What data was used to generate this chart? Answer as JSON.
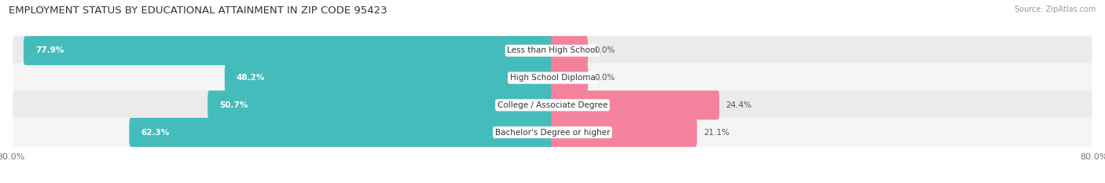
{
  "title": "EMPLOYMENT STATUS BY EDUCATIONAL ATTAINMENT IN ZIP CODE 95423",
  "source": "Source: ZipAtlas.com",
  "categories": [
    "Less than High School",
    "High School Diploma",
    "College / Associate Degree",
    "Bachelor's Degree or higher"
  ],
  "labor_force": [
    77.9,
    48.2,
    50.7,
    62.3
  ],
  "unemployed": [
    0.0,
    0.0,
    24.4,
    21.1
  ],
  "unemployed_display": [
    5.0,
    5.0,
    24.4,
    21.1
  ],
  "labor_force_color": "#45BCBC",
  "unemployed_color": "#F4829C",
  "row_bg_color_odd": "#EBEBEB",
  "row_bg_color_even": "#F5F5F5",
  "text_on_bar": "#FFFFFF",
  "text_outside": "#555555",
  "x_left_label": "80.0%",
  "x_right_label": "80.0%",
  "xlim_left": -80,
  "xlim_right": 80,
  "title_fontsize": 9.5,
  "source_fontsize": 7,
  "bar_label_fontsize": 7.5,
  "cat_label_fontsize": 7.5,
  "tick_fontsize": 8,
  "legend_fontsize": 8
}
